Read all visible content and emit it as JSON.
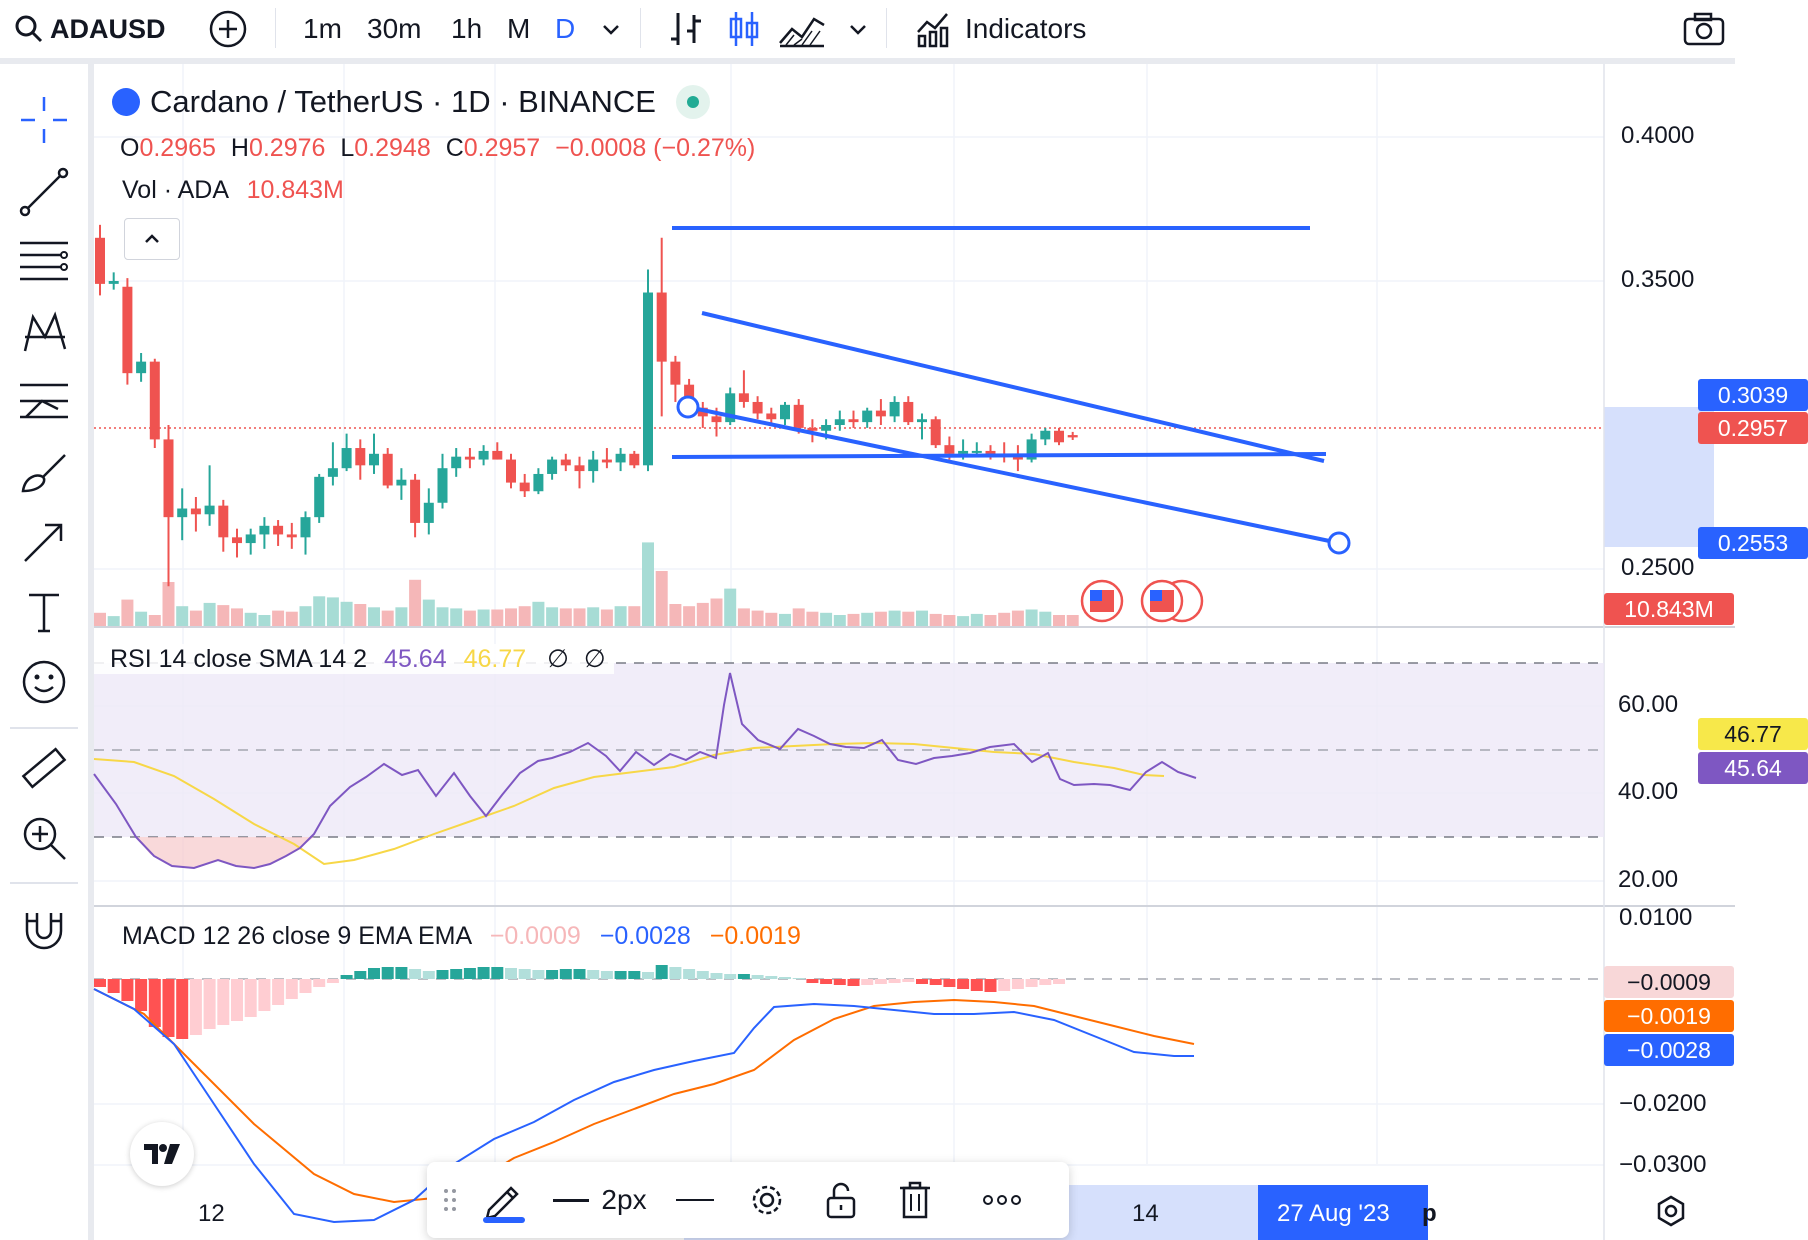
{
  "topbar": {
    "symbol": "ADAUSD",
    "intervals": [
      "1m",
      "30m",
      "1h",
      "M",
      "D"
    ],
    "active_interval": "D",
    "indicators_label": "Indicators"
  },
  "legend": {
    "title": "Cardano / TetherUS · 1D · BINANCE",
    "o_label": "O",
    "o_val": "0.2965",
    "h_label": "H",
    "h_val": "0.2976",
    "l_label": "L",
    "l_val": "0.2948",
    "c_label": "C",
    "c_val": "0.2957",
    "change": "−0.0008 (−0.27%)",
    "vol_label": "Vol · ADA",
    "vol_val": "10.843M"
  },
  "price_axis": {
    "ticks": [
      "0.4000",
      "0.3500",
      "0.2500"
    ],
    "label_high": "0.3039",
    "label_last": "0.2957",
    "label_low": "0.2553",
    "label_vol": "10.843M"
  },
  "rsi": {
    "title": "RSI 14 close SMA 14 2",
    "rsi_val": "45.64",
    "sma_val": "46.77",
    "extra1": "∅",
    "extra2": "∅",
    "ticks": [
      "60.00",
      "40.00",
      "20.00"
    ],
    "label_sma": "46.77",
    "label_rsi": "45.64"
  },
  "macd": {
    "title": "MACD 12 26 close 9 EMA EMA",
    "hist_val": "−0.0009",
    "macd_val": "−0.0028",
    "signal_val": "−0.0019",
    "ticks": [
      "0.0100",
      "−0.0200",
      "−0.0300"
    ],
    "label_hist": "−0.0009",
    "label_signal": "−0.0019",
    "label_macd": "−0.0028"
  },
  "time_axis": {
    "ticks": [
      "12",
      "14"
    ],
    "highlight": "27 Aug '23",
    "partial": "p"
  },
  "drawbar": {
    "width_label": "2px"
  },
  "colors": {
    "up": "#26a69a",
    "down": "#ef5350",
    "line_tool": "#2962ff",
    "rsi": "#7e57c2",
    "rsi_sma": "#f7d747",
    "macd": "#2962ff",
    "signal": "#ff6d00"
  }
}
